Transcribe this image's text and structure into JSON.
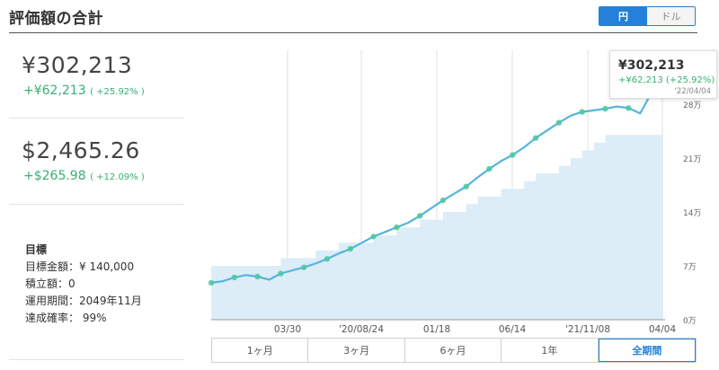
{
  "header": {
    "title": "評価額の合計",
    "currency_toggle": [
      {
        "label": "円",
        "active": true
      },
      {
        "label": "ドル",
        "active": false
      }
    ]
  },
  "summary": {
    "jpy": {
      "value": "¥302,213",
      "gain": "+¥62,213",
      "gain_pct": "( +25.92% )"
    },
    "usd": {
      "value": "$2,465.26",
      "gain": "+$265.98",
      "gain_pct": "( +12.09% )"
    }
  },
  "goal": {
    "title": "目標",
    "target_amount": "目標金額：¥ 140,000",
    "monthly_contribution": "積立額：0",
    "period": "運用期間：2049年11月",
    "probability": "達成確率： 99%"
  },
  "tooltip": {
    "value": "¥302,213",
    "gain": "+¥62,213 (+25.92%)",
    "date": "'22/04/04"
  },
  "period_buttons": [
    {
      "label": "1ヶ月",
      "active": false
    },
    {
      "label": "3ヶ月",
      "active": false
    },
    {
      "label": "6ヶ月",
      "active": false
    },
    {
      "label": "1年",
      "active": false
    },
    {
      "label": "全期間",
      "active": true
    }
  ],
  "colors": {
    "accent": "#2480d8",
    "gain_green": "#34b072",
    "line": "#56b4e0",
    "area": "#dcedf8",
    "marker": "#4cc79a"
  },
  "chart_data": {
    "type": "area",
    "x_tick_labels": [
      "03/30",
      "'20/08/24",
      "01/18",
      "06/14",
      "'21/11/08",
      "04/04"
    ],
    "y_tick_labels": [
      "0万",
      "7万",
      "14万",
      "21万",
      "28万"
    ],
    "ylim": [
      0,
      350000
    ],
    "grid": "vertical",
    "series": [
      {
        "kind": "line",
        "values": [
          48000,
          50000,
          55000,
          58000,
          56000,
          52000,
          60000,
          64000,
          68000,
          73000,
          79000,
          86000,
          92000,
          100000,
          108000,
          114000,
          120000,
          126000,
          135000,
          145000,
          155000,
          164000,
          173000,
          185000,
          196000,
          206000,
          214000,
          224000,
          236000,
          246000,
          256000,
          265000,
          270000,
          272000,
          274000,
          277000,
          275000,
          268000,
          295000,
          302213
        ]
      },
      {
        "kind": "area",
        "values": [
          70000,
          70000,
          70000,
          70000,
          70000,
          70000,
          80000,
          80000,
          80000,
          90000,
          90000,
          100000,
          100000,
          100000,
          110000,
          110000,
          120000,
          120000,
          130000,
          130000,
          140000,
          140000,
          150000,
          160000,
          160000,
          170000,
          170000,
          180000,
          190000,
          190000,
          200000,
          210000,
          220000,
          230000,
          240000,
          240000,
          240000,
          240000,
          240000,
          240000
        ]
      }
    ]
  }
}
